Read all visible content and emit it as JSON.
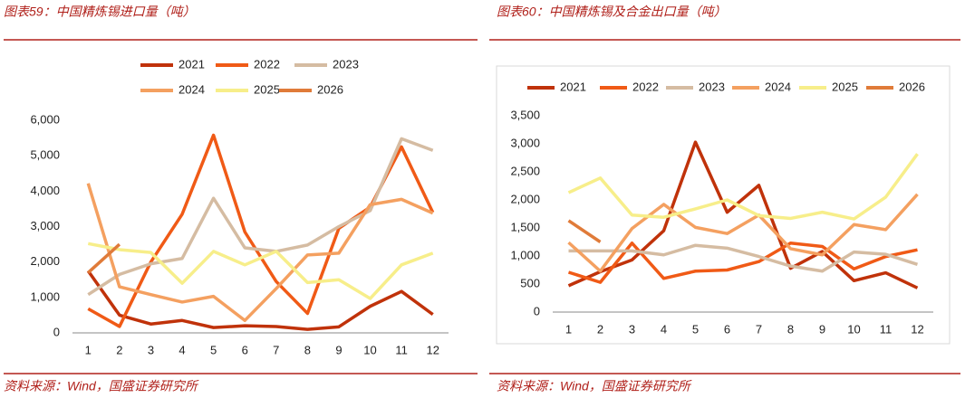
{
  "chart_data": [
    {
      "type": "line",
      "title": "图表59：中国精炼锡进口量（吨）",
      "source": "资料来源：Wind，国盛证券研究所",
      "categories": [
        "1",
        "2",
        "3",
        "4",
        "5",
        "6",
        "7",
        "8",
        "9",
        "10",
        "11",
        "12"
      ],
      "ylim": [
        0,
        6000
      ],
      "yticks": [
        0,
        {
          "value": 1000,
          "label": "1,000"
        },
        {
          "value": 2000,
          "label": "2,000"
        },
        {
          "value": 3000,
          "label": "3,000"
        },
        {
          "value": 4000,
          "label": "4,000"
        },
        {
          "value": 5000,
          "label": "5,000"
        },
        {
          "value": 6000,
          "label": "6,000"
        }
      ],
      "grid": false,
      "legend": "top",
      "series": [
        {
          "name": "2021",
          "color": "#c0320a",
          "values": [
            1750,
            500,
            250,
            350,
            150,
            200,
            180,
            100,
            170,
            750,
            1170,
            520
          ]
        },
        {
          "name": "2022",
          "color": "#f05a16",
          "values": [
            680,
            180,
            2000,
            3350,
            5580,
            2850,
            1450,
            550,
            2950,
            3550,
            5250,
            3400
          ]
        },
        {
          "name": "2023",
          "color": "#d5bca2",
          "values": [
            1080,
            1650,
            1950,
            2100,
            3800,
            2400,
            2300,
            2480,
            3000,
            3450,
            5480,
            5150
          ]
        },
        {
          "name": "2024",
          "color": "#f4a060",
          "values": [
            4220,
            1300,
            1080,
            870,
            1030,
            350,
            1250,
            2200,
            2250,
            3620,
            3770,
            3380
          ]
        },
        {
          "name": "2025",
          "color": "#f7ee8a",
          "values": [
            2520,
            2350,
            2270,
            1400,
            2300,
            1920,
            2300,
            1420,
            1500,
            970,
            1920,
            2250
          ]
        },
        {
          "name": "2026",
          "color": "#e07b39",
          "values": [
            1700,
            2500,
            null,
            null,
            null,
            null,
            null,
            null,
            null,
            null,
            null,
            null
          ]
        }
      ]
    },
    {
      "type": "line",
      "title": "图表60：中国精炼锡及合金出口量（吨）",
      "source": "资料来源：Wind，国盛证券研究所",
      "categories": [
        "1",
        "2",
        "3",
        "4",
        "5",
        "6",
        "7",
        "8",
        "9",
        "10",
        "11",
        "12"
      ],
      "ylim": [
        0,
        3500
      ],
      "yticks": [
        0,
        500,
        {
          "value": 1000,
          "label": "1,000"
        },
        {
          "value": 1500,
          "label": "1,500"
        },
        {
          "value": 2000,
          "label": "2,000"
        },
        {
          "value": 2500,
          "label": "2,500"
        },
        {
          "value": 3000,
          "label": "3,000"
        },
        {
          "value": 3500,
          "label": "3,500"
        }
      ],
      "grid": false,
      "legend": "top",
      "series": [
        {
          "name": "2021",
          "color": "#c0320a",
          "values": [
            470,
            720,
            930,
            1450,
            3030,
            1780,
            2260,
            780,
            1080,
            560,
            700,
            430
          ]
        },
        {
          "name": "2022",
          "color": "#f05a16",
          "values": [
            710,
            530,
            1230,
            600,
            730,
            750,
            900,
            1230,
            1170,
            770,
            990,
            1110
          ]
        },
        {
          "name": "2023",
          "color": "#d5bca2",
          "values": [
            1090,
            1090,
            1090,
            1020,
            1190,
            1140,
            990,
            820,
            730,
            1070,
            1030,
            850
          ]
        },
        {
          "name": "2024",
          "color": "#f4a060",
          "values": [
            1240,
            730,
            1490,
            1920,
            1510,
            1400,
            1730,
            1130,
            1020,
            1560,
            1470,
            2100
          ]
        },
        {
          "name": "2025",
          "color": "#f7ee8a",
          "values": [
            2130,
            2390,
            1730,
            1690,
            1840,
            2000,
            1720,
            1670,
            1780,
            1660,
            2050,
            2820
          ]
        },
        {
          "name": "2026",
          "color": "#e07b39",
          "values": [
            1630,
            1250,
            null,
            null,
            null,
            null,
            null,
            null,
            null,
            null,
            null,
            null
          ]
        }
      ]
    }
  ]
}
